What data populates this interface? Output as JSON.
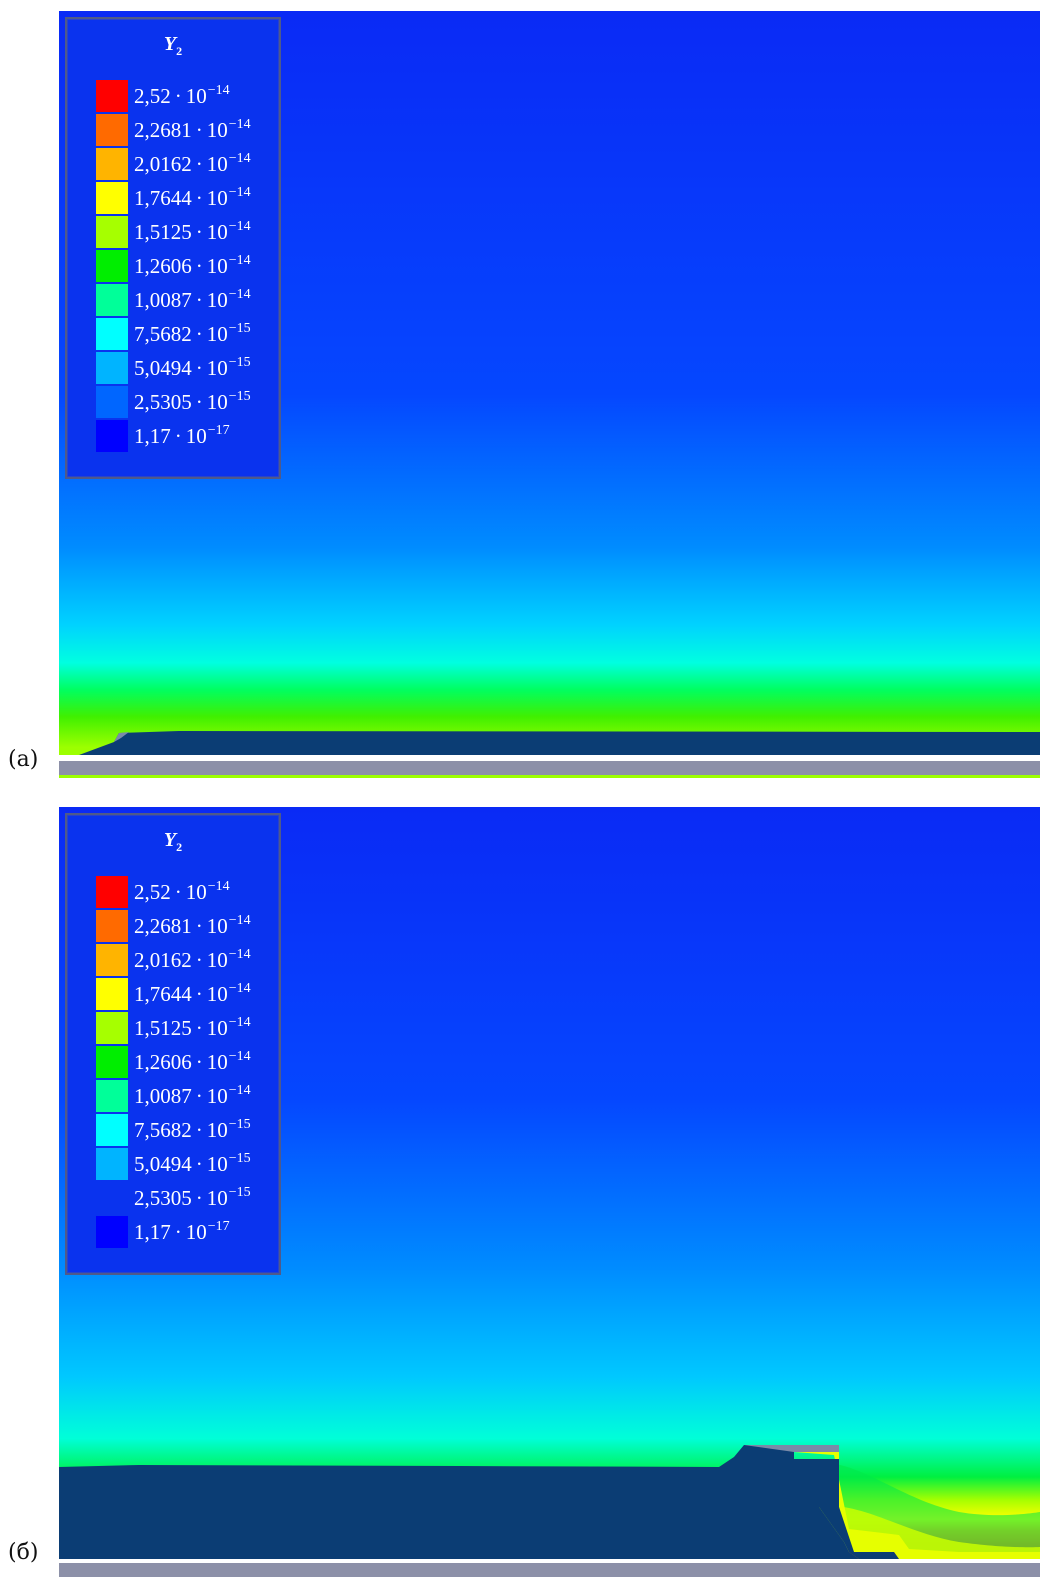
{
  "panels": [
    {
      "id": "a",
      "label": "(a)",
      "legend": {
        "variable": "Y",
        "subscript": "2",
        "items": [
          {
            "mantissa": "2,52",
            "base": "10",
            "exp": "−14",
            "color": "#ff0000"
          },
          {
            "mantissa": "2,2681",
            "base": "10",
            "exp": "−14",
            "color": "#ff6a00"
          },
          {
            "mantissa": "2,0162",
            "base": "10",
            "exp": "−14",
            "color": "#ffb400"
          },
          {
            "mantissa": "1,7644",
            "base": "10",
            "exp": "−14",
            "color": "#ffff00"
          },
          {
            "mantissa": "1,5125",
            "base": "10",
            "exp": "−14",
            "color": "#a6ff00"
          },
          {
            "mantissa": "1,2606",
            "base": "10",
            "exp": "−14",
            "color": "#00ee00"
          },
          {
            "mantissa": "1,0087",
            "base": "10",
            "exp": "−14",
            "color": "#00ff99"
          },
          {
            "mantissa": "7,5682",
            "base": "10",
            "exp": "−15",
            "color": "#00ffff"
          },
          {
            "mantissa": "5,0494",
            "base": "10",
            "exp": "−15",
            "color": "#00b4ff"
          },
          {
            "mantissa": "2,5305",
            "base": "10",
            "exp": "−15",
            "color": "#0066ff"
          },
          {
            "mantissa": "1,17",
            "base": "10",
            "exp": "−17",
            "color": "#0000ff"
          }
        ]
      }
    },
    {
      "id": "b",
      "label": "(б)",
      "legend": {
        "variable": "Y",
        "subscript": "2",
        "items": [
          {
            "mantissa": "2,52",
            "base": "10",
            "exp": "−14",
            "color": "#ff0000"
          },
          {
            "mantissa": "2,2681",
            "base": "10",
            "exp": "−14",
            "color": "#ff6a00"
          },
          {
            "mantissa": "2,0162",
            "base": "10",
            "exp": "−14",
            "color": "#ffb400"
          },
          {
            "mantissa": "1,7644",
            "base": "10",
            "exp": "−14",
            "color": "#ffff00"
          },
          {
            "mantissa": "1,5125",
            "base": "10",
            "exp": "−14",
            "color": "#a6ff00"
          },
          {
            "mantissa": "1,2606",
            "base": "10",
            "exp": "−14",
            "color": "#00ee00"
          },
          {
            "mantissa": "1,0087",
            "base": "10",
            "exp": "−14",
            "color": "#00ff99"
          },
          {
            "mantissa": "7,5682",
            "base": "10",
            "exp": "−15",
            "color": "#00ffff"
          },
          {
            "mantissa": "5,0494",
            "base": "10",
            "exp": "−15",
            "color": "#00b4ff"
          },
          {
            "mantissa": "2,5305",
            "base": "10",
            "exp": "−15",
            "color": "#0a33ee"
          },
          {
            "mantissa": "1,17",
            "base": "10",
            "exp": "−17",
            "color": "#0000ff"
          }
        ]
      }
    }
  ],
  "colors": {
    "background_top": "#0a2af5",
    "obstacle": "#0b3d74",
    "baseline_bar": "#8c90a8"
  }
}
